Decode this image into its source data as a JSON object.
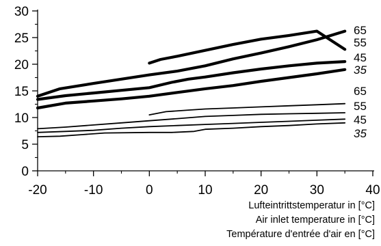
{
  "chart_data": {
    "type": "line",
    "xlabel_lines": [
      "Lufteintrittstemperatur in [°C]",
      "Air inlet temperature in [°C]",
      "Température d'entrée d'air en [°C]"
    ],
    "xlim": [
      -20,
      40
    ],
    "ylim": [
      0,
      30
    ],
    "xticks": [
      -20,
      -10,
      0,
      10,
      20,
      30,
      40
    ],
    "yticks": [
      0,
      5,
      10,
      15,
      20,
      25,
      30
    ],
    "grid": false,
    "series": [
      {
        "name": "65",
        "weight": "bold",
        "label_italic": false,
        "x": [
          -20,
          -16,
          -10,
          -5,
          0,
          5,
          10,
          15,
          20,
          25,
          30,
          35
        ],
        "y": [
          14,
          15.4,
          16.4,
          17.2,
          18,
          18.7,
          19.7,
          21,
          22.1,
          23.3,
          24.6,
          26.2
        ]
      },
      {
        "name": "55",
        "weight": "bold",
        "label_italic": false,
        "x": [
          0,
          2,
          5,
          10,
          15,
          20,
          25,
          30,
          35
        ],
        "y": [
          20.2,
          20.9,
          21.5,
          22.6,
          23.7,
          24.7,
          25.4,
          26.2,
          22.8
        ]
      },
      {
        "name": "45",
        "weight": "bold",
        "label_italic": false,
        "x": [
          -20,
          -15,
          -10,
          -5,
          0,
          4,
          7,
          10,
          15,
          20,
          25,
          30,
          35
        ],
        "y": [
          13.4,
          14.1,
          14.6,
          15.1,
          15.6,
          16.6,
          17.2,
          17.6,
          18.4,
          19.1,
          19.7,
          20.2,
          20.5
        ]
      },
      {
        "name": "35",
        "weight": "bold",
        "label_italic": true,
        "x": [
          -20,
          -15,
          -10,
          -5,
          0,
          5,
          10,
          15,
          20,
          25,
          30,
          35
        ],
        "y": [
          11.8,
          12.7,
          13.1,
          13.5,
          14,
          14.7,
          15.4,
          16,
          16.8,
          17.5,
          18.2,
          19
        ]
      },
      {
        "name": "65",
        "weight": "thin",
        "label_italic": false,
        "x": [
          0,
          3,
          7,
          10,
          15,
          20,
          25,
          30,
          35
        ],
        "y": [
          10.5,
          11.1,
          11.4,
          11.6,
          11.8,
          12.0,
          12.2,
          12.4,
          12.6
        ]
      },
      {
        "name": "55",
        "weight": "thin",
        "label_italic": false,
        "x": [
          -20,
          -15,
          -10,
          -5,
          0,
          5,
          10,
          15,
          20,
          25,
          30,
          35
        ],
        "y": [
          7.9,
          8.2,
          8.6,
          9.0,
          9.4,
          9.8,
          10.2,
          10.4,
          10.6,
          10.7,
          10.8,
          10.9
        ]
      },
      {
        "name": "45",
        "weight": "thin",
        "label_italic": false,
        "x": [
          -20,
          -15,
          -10,
          -5,
          0,
          5,
          10,
          15,
          20,
          25,
          30,
          35
        ],
        "y": [
          7.2,
          7.4,
          7.6,
          8.0,
          8.3,
          8.5,
          8.7,
          8.9,
          9.1,
          9.3,
          9.5,
          9.7
        ]
      },
      {
        "name": "35",
        "weight": "thin",
        "label_italic": true,
        "x": [
          -20,
          -16,
          -12,
          -8,
          0,
          4,
          8,
          10,
          15,
          20,
          25,
          30,
          35
        ],
        "y": [
          6.4,
          6.5,
          6.8,
          7.1,
          7.2,
          7.2,
          7.4,
          7.8,
          8.0,
          8.3,
          8.5,
          8.8,
          9.0
        ]
      }
    ]
  }
}
